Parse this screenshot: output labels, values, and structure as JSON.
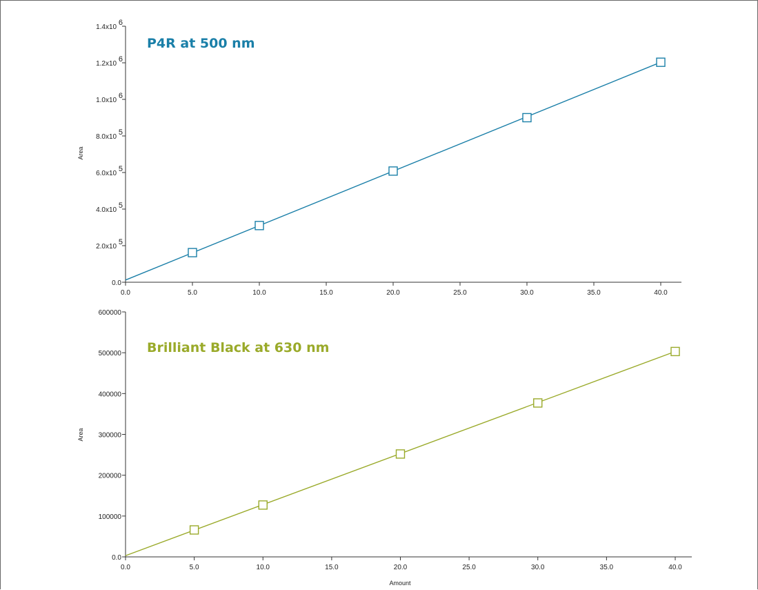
{
  "chart_data": [
    {
      "type": "scatter",
      "title": "P4R at 500 nm",
      "xlabel": "",
      "ylabel": "Area",
      "color": "#1a7fa8",
      "xlim": [
        0,
        41
      ],
      "ylim": [
        0,
        1400000
      ],
      "x_ticks": [
        "0.0",
        "5.0",
        "10.0",
        "15.0",
        "20.0",
        "25.0",
        "30.0",
        "35.0",
        "40.0"
      ],
      "y_ticks": [
        {
          "mantissa": "0.0",
          "exp": ""
        },
        {
          "mantissa": "2.0x10",
          "exp": "5"
        },
        {
          "mantissa": "4.0x10",
          "exp": "5"
        },
        {
          "mantissa": "6.0x10",
          "exp": "5"
        },
        {
          "mantissa": "8.0x10",
          "exp": "5"
        },
        {
          "mantissa": "1.0x10",
          "exp": "6"
        },
        {
          "mantissa": "1.2x10",
          "exp": "6"
        },
        {
          "mantissa": "1.4x10",
          "exp": "6"
        }
      ],
      "x": [
        5,
        10,
        20,
        30,
        40
      ],
      "y": [
        162000,
        310000,
        608000,
        900000,
        1203000
      ],
      "fit_line": {
        "x": [
          0,
          40
        ],
        "y": [
          12000,
          1203000
        ]
      },
      "grid": false,
      "legend": "none"
    },
    {
      "type": "scatter",
      "title": "Brilliant Black at 630 nm",
      "xlabel": "Amount",
      "ylabel": "Area",
      "color": "#9aaa2a",
      "xlim": [
        0,
        41
      ],
      "ylim": [
        0,
        600000
      ],
      "x_ticks": [
        "0.0",
        "5.0",
        "10.0",
        "15.0",
        "20.0",
        "25.0",
        "30.0",
        "35.0",
        "40.0"
      ],
      "y_ticks": [
        {
          "mantissa": "0.0",
          "exp": ""
        },
        {
          "mantissa": "100000",
          "exp": ""
        },
        {
          "mantissa": "200000",
          "exp": ""
        },
        {
          "mantissa": "300000",
          "exp": ""
        },
        {
          "mantissa": "400000",
          "exp": ""
        },
        {
          "mantissa": "500000",
          "exp": ""
        },
        {
          "mantissa": "600000",
          "exp": ""
        }
      ],
      "x": [
        5,
        10,
        20,
        30,
        40
      ],
      "y": [
        66000,
        127000,
        252000,
        377000,
        503000
      ],
      "fit_line": {
        "x": [
          0,
          40
        ],
        "y": [
          3000,
          503000
        ]
      },
      "grid": false,
      "legend": "none"
    }
  ]
}
